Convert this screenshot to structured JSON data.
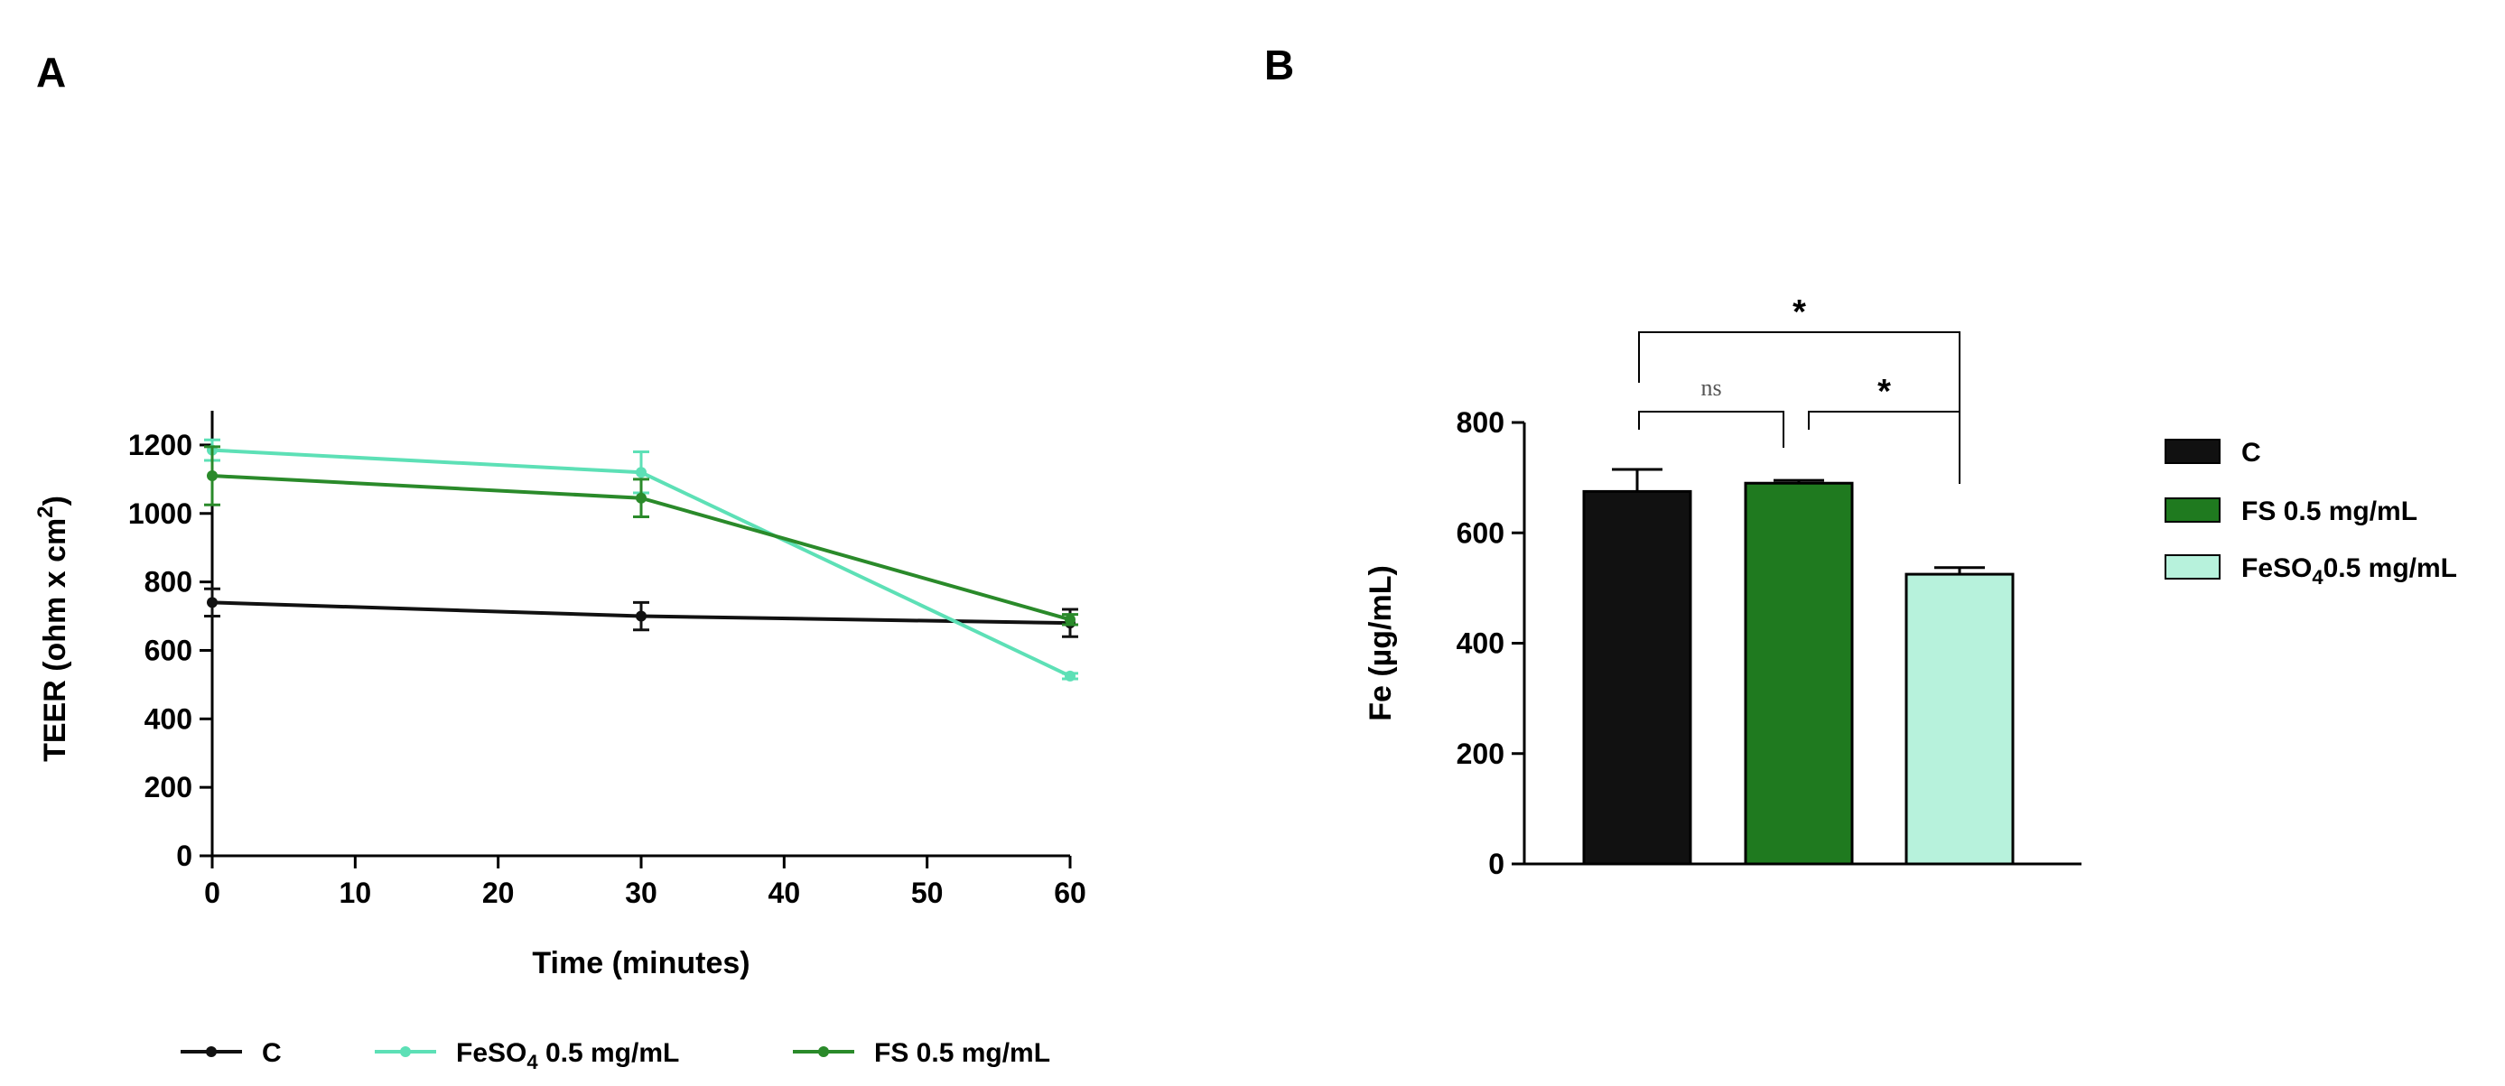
{
  "colors": {
    "C": "#111111",
    "FeSO4": "#5de0b6",
    "FS": "#2a8a2a",
    "FeSO4_bar": "#b7f2dc",
    "FS_bar": "#1f7a1f"
  },
  "panel_labels": {
    "a": "A",
    "b": "B"
  },
  "chart_data": [
    {
      "type": "line",
      "xlabel": "Time (minutes)",
      "ylabel": "TEER (ohm x cm²)",
      "ylabel_parts": {
        "main": "TEER (ohm x cm",
        "sup": "2",
        "close": ")"
      },
      "xlim": [
        0,
        60
      ],
      "ylim": [
        0,
        1300
      ],
      "xticks": [
        "0",
        "10",
        "20",
        "30",
        "40",
        "50",
        "60"
      ],
      "yticks": [
        "0",
        "200",
        "400",
        "600",
        "800",
        "1000",
        "1200"
      ],
      "x": [
        0,
        30,
        60
      ],
      "series": [
        {
          "key": "C",
          "name": "C",
          "name_main": "C",
          "name_sub": "",
          "name_rest": "",
          "values": [
            740,
            700,
            680
          ],
          "errors": [
            40,
            40,
            40
          ]
        },
        {
          "key": "FeSO4",
          "name": "FeSO4 0.5 mg/mL",
          "name_main": "FeSO",
          "name_sub": "4",
          "name_rest": " 0.5 mg/mL",
          "values": [
            1185,
            1120,
            525
          ],
          "errors": [
            30,
            60,
            8
          ]
        },
        {
          "key": "FS",
          "name": "FS 0.5 mg/mL",
          "name_main": "FS 0.5 mg/mL",
          "name_sub": "",
          "name_rest": "",
          "values": [
            1110,
            1045,
            690
          ],
          "errors": [
            85,
            55,
            15
          ]
        }
      ],
      "legend_position": "bottom"
    },
    {
      "type": "bar",
      "ylabel": "Fe (µg/mL)",
      "ylim": [
        0,
        800
      ],
      "yticks": [
        "0",
        "200",
        "400",
        "600",
        "800"
      ],
      "categories": [
        "C",
        "FS 0.5 mg/mL",
        "FeSO4 0.5 mg/mL"
      ],
      "values": [
        675,
        690,
        525
      ],
      "errors": [
        40,
        5,
        12
      ],
      "legend": [
        {
          "key": "C",
          "name_main": "C",
          "name_sub": "",
          "name_rest": ""
        },
        {
          "key": "FS",
          "name_main": "FS 0.5 mg/mL",
          "name_sub": "",
          "name_rest": ""
        },
        {
          "key": "FeSO4",
          "name_main": "FeSO",
          "name_sub": "4",
          "name_rest": "0.5 mg/mL"
        }
      ],
      "legend_position": "right",
      "significance": [
        {
          "from": 0,
          "to": 1,
          "label": "ns"
        },
        {
          "from": 1,
          "to": 2,
          "label": "*"
        },
        {
          "from": 0,
          "to": 2,
          "label": "*"
        }
      ]
    }
  ]
}
